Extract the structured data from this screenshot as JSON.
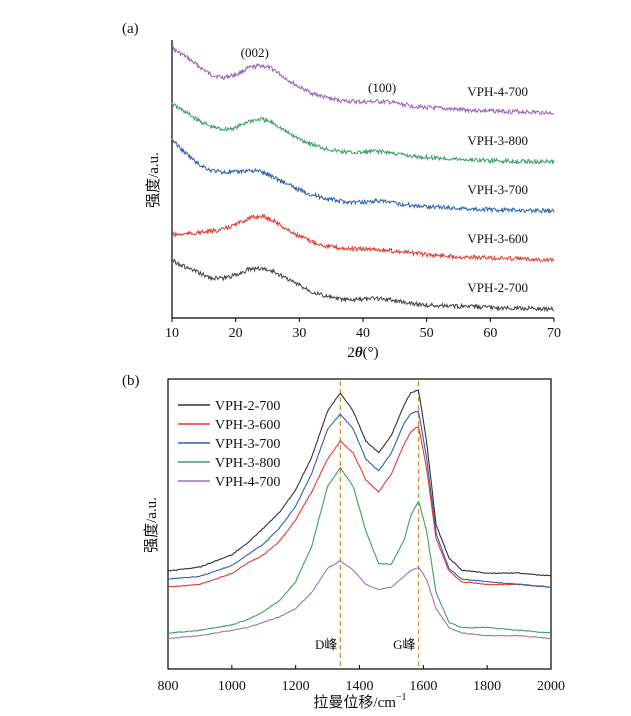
{
  "chart_data": [
    {
      "panel_label": "(a)",
      "type": "line",
      "xlabel_prefix": "2",
      "xlabel_theta": "θ",
      "xlabel_suffix": "(°)",
      "ylabel": "强度/a.u.",
      "xlim": [
        10,
        70
      ],
      "xticks": [
        10,
        20,
        30,
        40,
        50,
        60,
        70
      ],
      "yticks_shown": false,
      "grid": false,
      "annotations": [
        {
          "text": "(002)",
          "x": 23
        },
        {
          "text": "(100)",
          "x": 43
        }
      ],
      "series": [
        {
          "name": "VPH-4-700",
          "color": "#9b62b5",
          "offset": 4,
          "x": [
            10,
            12,
            14,
            16,
            18,
            20,
            22,
            24,
            26,
            28,
            30,
            32,
            34,
            36,
            38,
            40,
            42,
            44,
            46,
            48,
            50,
            55,
            60,
            65,
            70
          ],
          "y": [
            0.95,
            0.84,
            0.7,
            0.57,
            0.52,
            0.56,
            0.66,
            0.7,
            0.64,
            0.5,
            0.38,
            0.29,
            0.23,
            0.19,
            0.17,
            0.16,
            0.17,
            0.16,
            0.13,
            0.1,
            0.08,
            0.05,
            0.03,
            0.02,
            0.0
          ]
        },
        {
          "name": "VPH-3-800",
          "color": "#3da067",
          "offset": 3,
          "x": [
            10,
            12,
            14,
            16,
            18,
            20,
            22,
            24,
            26,
            28,
            30,
            32,
            34,
            36,
            38,
            40,
            42,
            44,
            46,
            48,
            50,
            55,
            60,
            65,
            70
          ],
          "y": [
            0.85,
            0.74,
            0.62,
            0.52,
            0.48,
            0.5,
            0.6,
            0.63,
            0.57,
            0.44,
            0.34,
            0.26,
            0.2,
            0.16,
            0.14,
            0.14,
            0.16,
            0.14,
            0.11,
            0.08,
            0.07,
            0.04,
            0.02,
            0.01,
            0.0
          ]
        },
        {
          "name": "VPH-3-700",
          "color": "#2f62b1",
          "offset": 2,
          "x": [
            10,
            12,
            14,
            16,
            18,
            20,
            22,
            24,
            26,
            28,
            30,
            32,
            34,
            36,
            38,
            40,
            42,
            44,
            46,
            48,
            50,
            55,
            60,
            65,
            70
          ],
          "y": [
            1.05,
            0.86,
            0.7,
            0.6,
            0.57,
            0.57,
            0.6,
            0.58,
            0.5,
            0.4,
            0.31,
            0.24,
            0.19,
            0.15,
            0.13,
            0.13,
            0.15,
            0.13,
            0.1,
            0.08,
            0.07,
            0.04,
            0.02,
            0.01,
            0.0
          ]
        },
        {
          "name": "VPH-3-600",
          "color": "#e03c32",
          "offset": 1,
          "x": [
            10,
            12,
            14,
            16,
            18,
            20,
            22,
            24,
            26,
            28,
            30,
            32,
            34,
            36,
            38,
            40,
            42,
            44,
            46,
            48,
            50,
            55,
            60,
            65,
            70
          ],
          "y": [
            0.37,
            0.38,
            0.4,
            0.42,
            0.45,
            0.52,
            0.61,
            0.65,
            0.58,
            0.45,
            0.35,
            0.27,
            0.21,
            0.18,
            0.16,
            0.16,
            0.16,
            0.14,
            0.12,
            0.1,
            0.08,
            0.05,
            0.03,
            0.02,
            0.0
          ]
        },
        {
          "name": "VPH-2-700",
          "color": "#444444",
          "offset": 0,
          "x": [
            10,
            12,
            14,
            16,
            18,
            20,
            22,
            24,
            26,
            28,
            30,
            32,
            34,
            36,
            38,
            40,
            42,
            44,
            46,
            48,
            50,
            55,
            60,
            65,
            70
          ],
          "y": [
            0.72,
            0.62,
            0.54,
            0.46,
            0.45,
            0.5,
            0.58,
            0.6,
            0.55,
            0.45,
            0.35,
            0.26,
            0.19,
            0.15,
            0.13,
            0.14,
            0.16,
            0.14,
            0.11,
            0.08,
            0.06,
            0.04,
            0.02,
            0.01,
            0.0
          ]
        }
      ]
    },
    {
      "panel_label": "(b)",
      "type": "line",
      "xlabel": "拉曼位移/cm",
      "xlabel_sup": "−1",
      "ylabel": "强度/a.u.",
      "xlim": [
        800,
        2000
      ],
      "xticks": [
        800,
        1000,
        1200,
        1400,
        1600,
        1800,
        2000
      ],
      "yticks_shown": false,
      "grid": false,
      "legend_position": "top-left",
      "reference_lines": [
        {
          "x": 1340,
          "label": "D峰"
        },
        {
          "x": 1585,
          "label": "G峰"
        }
      ],
      "series": [
        {
          "name": "VPH-2-700",
          "color": "#333333",
          "x": [
            800,
            900,
            1000,
            1050,
            1100,
            1150,
            1200,
            1250,
            1300,
            1340,
            1380,
            1420,
            1460,
            1500,
            1540,
            1560,
            1585,
            1610,
            1640,
            1680,
            1720,
            1800,
            1900,
            2000
          ],
          "y": [
            0.23,
            0.244,
            0.29,
            0.334,
            0.39,
            0.448,
            0.53,
            0.65,
            0.822,
            0.889,
            0.822,
            0.711,
            0.667,
            0.733,
            0.844,
            0.889,
            0.9,
            0.711,
            0.4,
            0.278,
            0.233,
            0.222,
            0.222,
            0.211
          ]
        },
        {
          "name": "VPH-3-600",
          "color": "#e03c32",
          "x": [
            800,
            900,
            1000,
            1050,
            1100,
            1150,
            1200,
            1250,
            1300,
            1340,
            1380,
            1420,
            1460,
            1500,
            1540,
            1560,
            1585,
            1610,
            1640,
            1680,
            1720,
            1800,
            1900,
            2000
          ],
          "y": [
            0.17,
            0.18,
            0.22,
            0.26,
            0.29,
            0.34,
            0.42,
            0.522,
            0.644,
            0.711,
            0.667,
            0.567,
            0.522,
            0.589,
            0.7,
            0.744,
            0.767,
            0.611,
            0.35,
            0.23,
            0.19,
            0.18,
            0.18,
            0.17
          ]
        },
        {
          "name": "VPH-3-700",
          "color": "#2f62b1",
          "x": [
            800,
            900,
            1000,
            1050,
            1100,
            1150,
            1200,
            1250,
            1300,
            1340,
            1380,
            1420,
            1460,
            1500,
            1540,
            1560,
            1585,
            1610,
            1640,
            1680,
            1720,
            1800,
            1900,
            2000
          ],
          "y": [
            0.2,
            0.21,
            0.25,
            0.29,
            0.33,
            0.39,
            0.47,
            0.589,
            0.756,
            0.811,
            0.756,
            0.644,
            0.6,
            0.667,
            0.778,
            0.811,
            0.822,
            0.65,
            0.37,
            0.24,
            0.2,
            0.19,
            0.18,
            0.17
          ]
        },
        {
          "name": "VPH-3-800",
          "color": "#3da067",
          "x": [
            800,
            900,
            1000,
            1050,
            1100,
            1150,
            1200,
            1250,
            1300,
            1340,
            1380,
            1420,
            1460,
            1500,
            1540,
            1560,
            1585,
            1610,
            1640,
            1680,
            1720,
            1800,
            1900,
            2000
          ],
          "y": [
            0.0,
            0.01,
            0.03,
            0.05,
            0.08,
            0.12,
            0.19,
            0.32,
            0.544,
            0.611,
            0.544,
            0.378,
            0.256,
            0.256,
            0.344,
            0.433,
            0.489,
            0.38,
            0.15,
            0.04,
            0.02,
            0.02,
            0.01,
            0.0
          ]
        },
        {
          "name": "VPH-4-700",
          "color": "#a071bf",
          "x": [
            800,
            900,
            1000,
            1050,
            1100,
            1150,
            1200,
            1250,
            1300,
            1340,
            1380,
            1420,
            1460,
            1500,
            1540,
            1560,
            1585,
            1610,
            1640,
            1680,
            1720,
            1800,
            1900,
            2000
          ],
          "y": [
            -0.02,
            -0.01,
            0.01,
            0.02,
            0.04,
            0.06,
            0.09,
            0.15,
            0.24,
            0.267,
            0.233,
            0.18,
            0.16,
            0.17,
            0.21,
            0.23,
            0.244,
            0.2,
            0.09,
            0.02,
            0.0,
            -0.01,
            -0.01,
            -0.02
          ]
        }
      ]
    }
  ]
}
